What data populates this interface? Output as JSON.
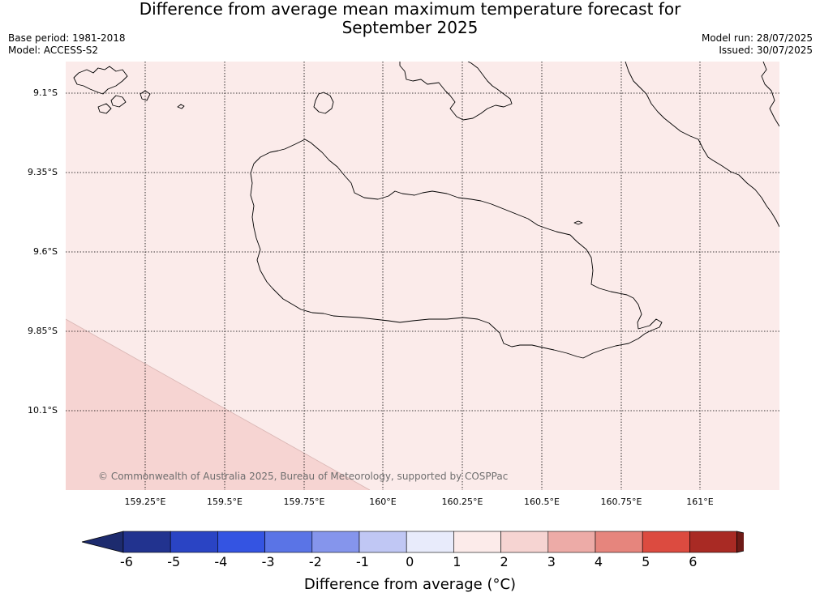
{
  "title_line1": "Difference from average mean maximum temperature forecast for",
  "title_line2": "September 2025",
  "base_period": "Base period: 1981-2018",
  "model": "Model: ACCESS-S2",
  "model_run": "Model run: 28/07/2025",
  "issued": "Issued: 30/07/2025",
  "copyright": "© Commonwealth of Australia 2025, Bureau of Meteorology, supported by COSPPac",
  "lat_labels": [
    "9.1°S",
    "9.35°S",
    "9.6°S",
    "9.85°S",
    "10.1°S"
  ],
  "lon_labels": [
    "159.25°E",
    "159.5°E",
    "159.75°E",
    "160°E",
    "160.25°E",
    "160.5°E",
    "160.75°E",
    "161°E"
  ],
  "colorbar": {
    "title": "Difference from average (°C)",
    "ticks": [
      "-6",
      "-5",
      "-4",
      "-3",
      "-2",
      "-1",
      "0",
      "1",
      "2",
      "3",
      "4",
      "5",
      "6"
    ],
    "colors": [
      "#22338f",
      "#2a44c4",
      "#3454e2",
      "#5a74e6",
      "#8595ec",
      "#c0c7f4",
      "#e8ebfb",
      "#fcebea",
      "#f6d4d2",
      "#edaba7",
      "#e6857d",
      "#dc4b40",
      "#a92a24"
    ],
    "under_color": "#1d2b6e",
    "over_color": "#6e1b17"
  },
  "map_colors": {
    "background": "#fbebea",
    "lower_left_region": "#f6d4d2"
  }
}
